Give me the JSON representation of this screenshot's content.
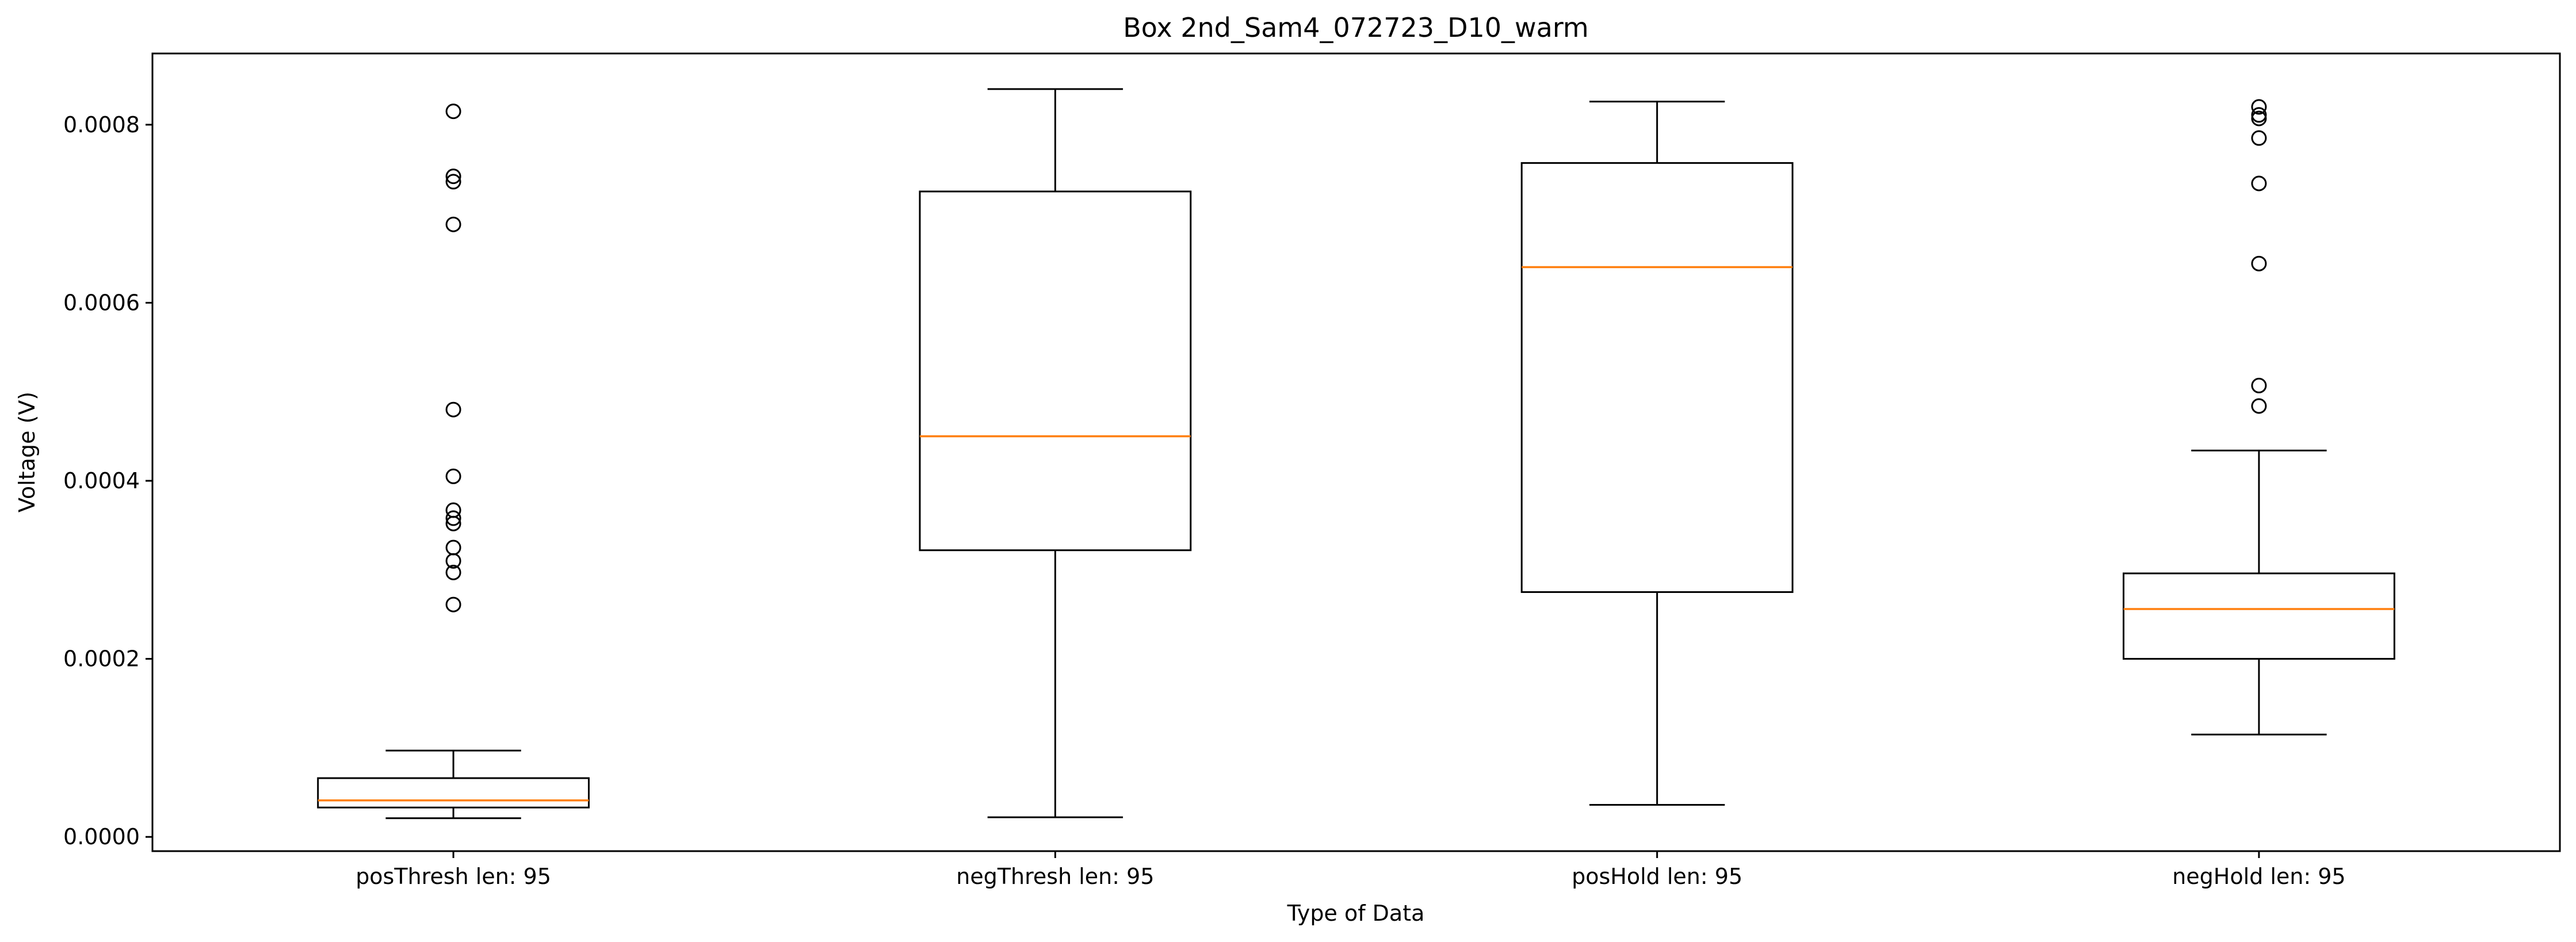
{
  "chart_data": {
    "type": "box",
    "title": "Box 2nd_Sam4_072723_D10_warm",
    "xlabel": "Type of Data",
    "ylabel": "Voltage (V)",
    "ylim": [
      -1.6e-05,
      0.00088
    ],
    "yticks": [
      0,
      0.0002,
      0.0004,
      0.0006,
      0.0008
    ],
    "ytick_labels": [
      "0.0000",
      "0.0002",
      "0.0004",
      "0.0006",
      "0.0008"
    ],
    "grid": false,
    "colors": {
      "box": "#000000",
      "median": "#ff7f0e",
      "outlier": "#000000"
    },
    "categories": [
      "posThresh len: 95",
      "negThresh len: 95",
      "posHold len: 95",
      "negHold len: 95"
    ],
    "boxes": [
      {
        "whisker_low": 2.1e-05,
        "q1": 3.3e-05,
        "median": 4.1e-05,
        "q3": 6.6e-05,
        "whisker_high": 9.7e-05,
        "outliers": [
          0.000815,
          0.000742,
          0.000736,
          0.000688,
          0.00048,
          0.000405,
          0.000367,
          0.000358,
          0.000352,
          0.000325,
          0.00031,
          0.000297,
          0.000261
        ]
      },
      {
        "whisker_low": 2.2e-05,
        "q1": 0.000322,
        "median": 0.00045,
        "q3": 0.000725,
        "whisker_high": 0.00084,
        "outliers": []
      },
      {
        "whisker_low": 3.6e-05,
        "q1": 0.000275,
        "median": 0.00064,
        "q3": 0.000757,
        "whisker_high": 0.000826,
        "outliers": []
      },
      {
        "whisker_low": 0.000115,
        "q1": 0.0002,
        "median": 0.000256,
        "q3": 0.000296,
        "whisker_high": 0.000434,
        "outliers": [
          0.00082,
          0.000811,
          0.000807,
          0.000785,
          0.000734,
          0.000644,
          0.000507,
          0.000484
        ]
      }
    ]
  }
}
